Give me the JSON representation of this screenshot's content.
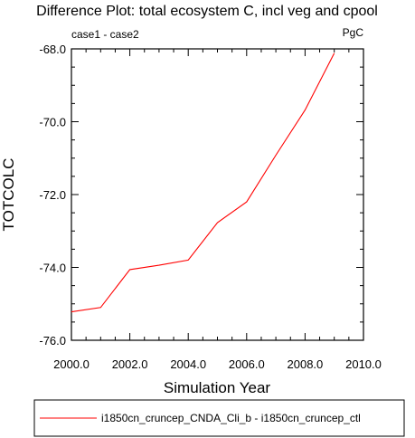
{
  "chart_data": {
    "type": "line",
    "title": "Difference Plot: total ecosystem C, incl veg and cpool",
    "left_subtitle": "case1 - case2",
    "right_subtitle": "PgC",
    "xlabel": "Simulation Year",
    "ylabel": "TOTCOLC",
    "xlim": [
      2000,
      2010
    ],
    "ylim": [
      -76,
      -68
    ],
    "x_ticks": [
      "2000.0",
      "2002.0",
      "2004.0",
      "2006.0",
      "2008.0",
      "2010.0"
    ],
    "y_ticks": [
      "-76.0",
      "-74.0",
      "-72.0",
      "-70.0",
      "-68.0"
    ],
    "grid": false,
    "legend_position": "bottom",
    "series": [
      {
        "name": "i1850cn_cruncep_CNDA_Cli_b - i1850cn_cruncep_ctl",
        "color": "#ff0000",
        "x": [
          2000,
          2001,
          2002,
          2003,
          2004,
          2005,
          2006,
          2007,
          2008,
          2009
        ],
        "y": [
          -75.22,
          -75.1,
          -74.06,
          -73.94,
          -73.8,
          -72.77,
          -72.2,
          -70.92,
          -69.68,
          -68.12
        ]
      }
    ]
  }
}
